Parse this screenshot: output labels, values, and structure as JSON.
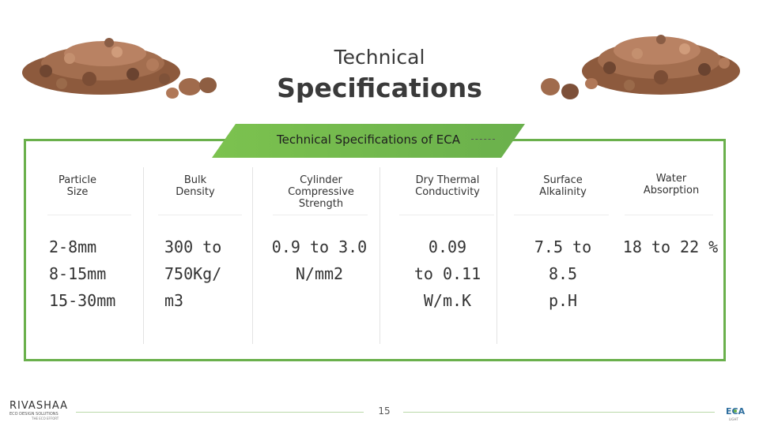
{
  "slide": {
    "title_line1": "Technical",
    "title_line2": "Specifications",
    "banner": "Technical Specifications of ECA",
    "page_number": "15"
  },
  "columns": [
    {
      "header": [
        "Particle",
        "Size"
      ],
      "values": [
        "2-8mm",
        "8-15mm",
        "15-30mm"
      ]
    },
    {
      "header": [
        "Bulk",
        "Density"
      ],
      "values": [
        "300 to",
        "750Kg/",
        "m3"
      ]
    },
    {
      "header": [
        "Cylinder",
        "Compressive",
        "Strength"
      ],
      "values": [
        "0.9 to 3.0",
        "N/mm2"
      ]
    },
    {
      "header": [
        "Dry Thermal",
        "Conductivity"
      ],
      "values": [
        "0.09",
        "to 0.11",
        "W/m.K"
      ]
    },
    {
      "header": [
        "Surface",
        "Alkalinity"
      ],
      "values": [
        "7.5 to 8.5",
        "p.H"
      ]
    },
    {
      "header": [
        "Water",
        "Absorption"
      ],
      "values": [
        "18 to 22 %"
      ]
    }
  ],
  "logos": {
    "left_main": "RIVASHAA",
    "left_sub1": "ECO DESIGN SOLUTIONS",
    "left_sub2": "THE ECO EFFORT",
    "right_main": "ECA",
    "right_sub": "LIGHT"
  },
  "colors": {
    "accent_green": "#6ab04c",
    "banner_light": "#9fd46a",
    "banner_dark": "#4e9a2c",
    "pellet_brown": "#9a6a4a"
  },
  "icons": {
    "pellets_left": "clay-pebbles-image",
    "pellets_right": "clay-pebbles-image"
  }
}
